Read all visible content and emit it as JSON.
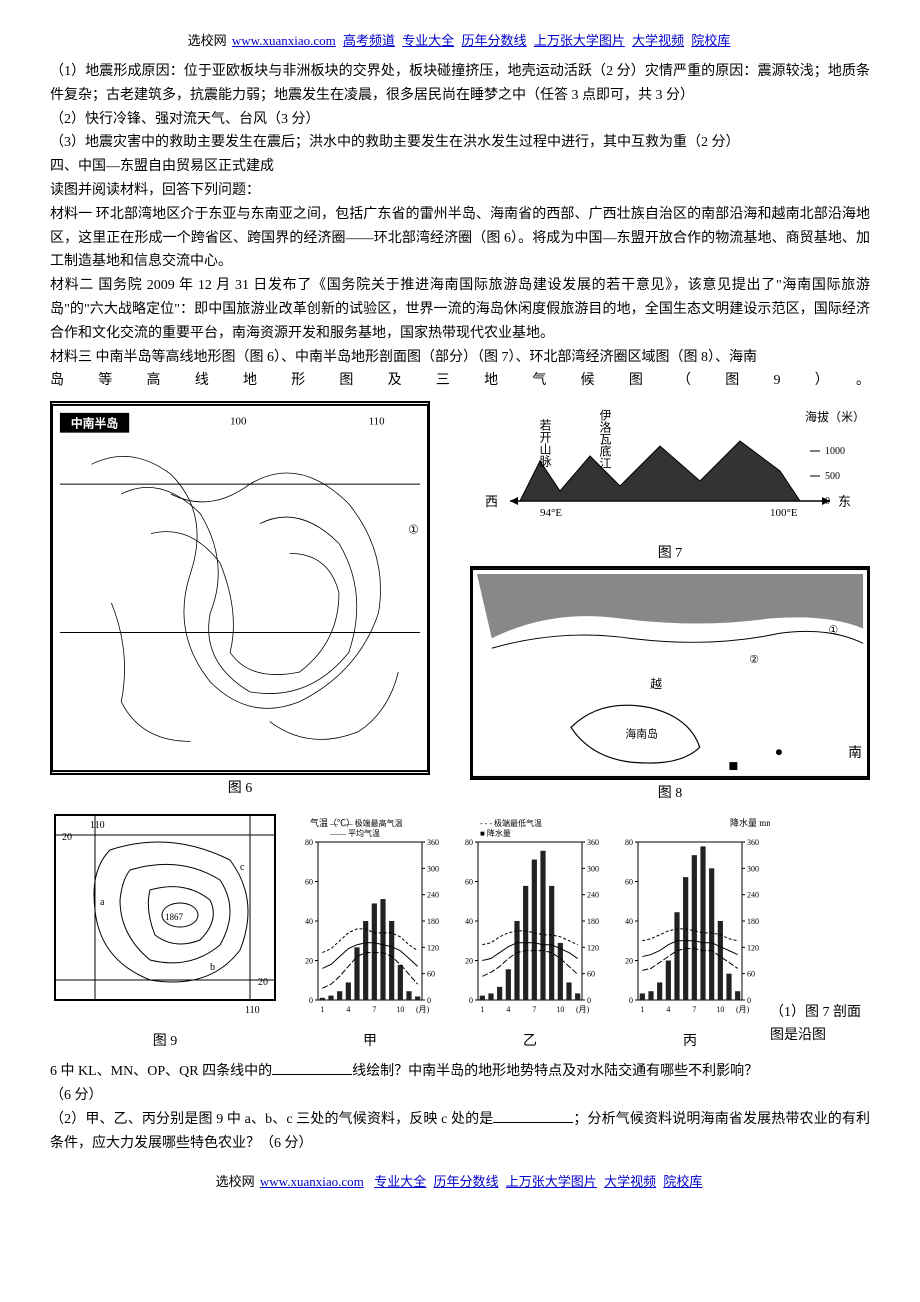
{
  "header": {
    "prefix": "选校网",
    "site": "www.xuanxiao.com",
    "links": [
      "高考频道",
      "专业大全",
      "历年分数线",
      "上万张大学图片",
      "大学视频",
      "院校库"
    ]
  },
  "footer": {
    "prefix": "选校网",
    "site": "www.xuanxiao.com",
    "links": [
      "专业大全",
      "历年分数线",
      "上万张大学图片",
      "大学视频",
      "院校库"
    ]
  },
  "para_q1": "（1）地震形成原因：位于亚欧板块与非洲板块的交界处，板块碰撞挤压，地壳运动活跃（2 分）灾情严重的原因：震源较浅；地质条件复杂；古老建筑多，抗震能力弱；地震发生在凌晨，很多居民尚在睡梦之中（任答 3 点即可，共 3 分）",
  "para_q2": "（2）快行冷锋、强对流天气、台风（3 分）",
  "para_q3": "（3）地震灾害中的救助主要发生在震后；洪水中的救助主要发生在洪水发生过程中进行，其中互救为重（2 分）",
  "para_title4": "四、中国—东盟自由贸易区正式建成",
  "para_intro": "读图并阅读材料，回答下列问题：",
  "para_m1": "材料一  环北部湾地区介于东亚与东南亚之间，包括广东省的雷州半岛、海南省的西部、广西壮族自治区的南部沿海和越南北部沿海地区，这里正在形成一个跨省区、跨国界的经济圈——环北部湾经济圈（图 6）。将成为中国—东盟开放合作的物流基地、商贸基地、加工制造基地和信息交流中心。",
  "para_m2": "材料二 国务院 2009 年 12 月 31 日发布了《国务院关于推进海南国际旅游岛建设发展的若干意见》，该意见提出了\"海南国际旅游岛\"的\"六大战略定位\"：即中国旅游业改革创新的试验区，世界一流的海岛休闲度假旅游目的地，全国生态文明建设示范区，国际经济合作和文化交流的重要平台，南海资源开发和服务基地，国家热带现代农业基地。",
  "para_m3_a": "材料三  中南半岛等高线地形图（图 6）、中南半岛地形剖面图（部分）（图 7）、环北部湾经济圈区域图（图 8）、海南",
  "para_m3_b": "岛等高线地形图及三地气候图（图9）。",
  "fig6_caption": "图 6",
  "fig7_caption": "图 7",
  "fig8_caption": "图 8",
  "fig9_caption": "图 9",
  "climate_labels": [
    "甲",
    "乙",
    "丙"
  ],
  "q1_lead": "（1）图 7 剖面图是沿图",
  "q1_body_a": "6 中 KL、MN、OP、QR 四条线中的",
  "q1_body_b": "线绘制？中南半岛的地形地势特点及对水陆交通有哪些不利影响？",
  "q1_score": "（6 分）",
  "q2_a": "（2）甲、乙、丙分别是图 9 中 a、b、c 三处的气候资料，反映 c 处的是",
  "q2_b": "；分析气候资料说明海南省发展热带农业的有利条件，应大力发展哪些特色农业？（6 分）",
  "fig7": {
    "labels": {
      "west": "西",
      "east": "东",
      "x1": "94°E",
      "x2": "100°E",
      "mountain": "若开山脉",
      "river": "伊洛瓦底江",
      "ylab": "海拔（米）",
      "t1000": "1000",
      "t500": "500",
      "t0": "0"
    }
  },
  "fig9": {
    "labels": {
      "t110a": "110",
      "t110b": "110",
      "t20a": "20",
      "t20b": "20",
      "peak": "1867"
    }
  },
  "climate_cfg": {
    "legend": {
      "maxT": "极端最高气温",
      "minT": "极端最低气温",
      "avgT": "平均气温",
      "precip": "降水量"
    },
    "axis": {
      "temp_label": "气温（℃）",
      "precip_label": "降水量  mm",
      "temp_ticks": [
        80,
        60,
        40,
        20,
        0
      ],
      "precip_ticks": [
        360,
        300,
        240,
        180,
        120,
        60,
        0
      ],
      "months": [
        1,
        4,
        7,
        10
      ]
    },
    "bar_color": "#222222",
    "charts": [
      {
        "precip": [
          5,
          10,
          20,
          40,
          120,
          180,
          220,
          230,
          180,
          80,
          20,
          8
        ],
        "tmax": [
          24,
          26,
          30,
          34,
          36,
          36,
          34,
          34,
          34,
          32,
          28,
          25
        ],
        "tavg": [
          16,
          18,
          22,
          26,
          28,
          29,
          29,
          28,
          27,
          25,
          21,
          17
        ],
        "tmin": [
          6,
          8,
          12,
          17,
          22,
          24,
          24,
          24,
          22,
          18,
          13,
          8
        ]
      },
      {
        "precip": [
          10,
          15,
          30,
          70,
          180,
          260,
          320,
          340,
          260,
          130,
          40,
          15
        ],
        "tmax": [
          28,
          29,
          32,
          34,
          35,
          35,
          34,
          33,
          33,
          32,
          30,
          28
        ],
        "tavg": [
          20,
          21,
          24,
          27,
          29,
          29,
          29,
          28,
          28,
          26,
          24,
          21
        ],
        "tmin": [
          12,
          14,
          17,
          21,
          24,
          25,
          25,
          25,
          24,
          21,
          17,
          13
        ]
      },
      {
        "precip": [
          15,
          20,
          40,
          90,
          200,
          280,
          330,
          350,
          300,
          180,
          60,
          20
        ],
        "tmax": [
          30,
          31,
          33,
          35,
          36,
          36,
          35,
          34,
          34,
          33,
          31,
          30
        ],
        "tavg": [
          22,
          23,
          25,
          28,
          30,
          30,
          30,
          29,
          29,
          27,
          25,
          23
        ],
        "tmin": [
          15,
          16,
          19,
          22,
          25,
          26,
          26,
          25,
          25,
          22,
          19,
          16
        ]
      }
    ]
  }
}
